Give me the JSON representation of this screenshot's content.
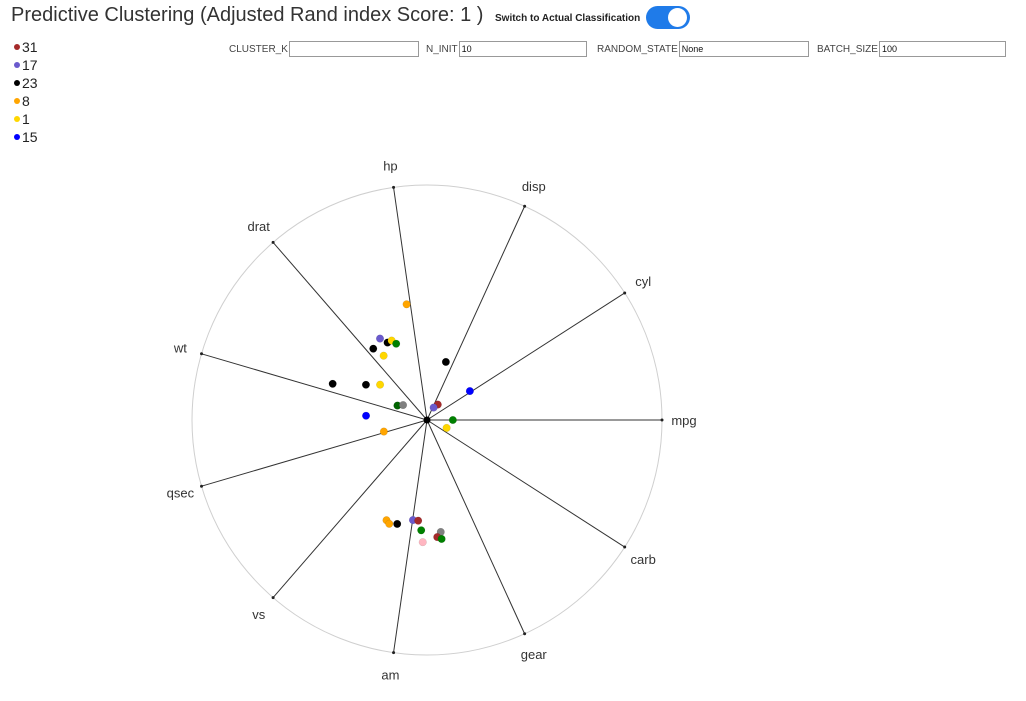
{
  "header": {
    "title": "Predictive Clustering (Adjusted Rand index Score: 1 )",
    "toggle_label": "Switch to Actual Classification",
    "toggle_on": true,
    "toggle_color": "#1f7be9"
  },
  "legend": {
    "items": [
      {
        "label": "31",
        "color": "#a52a2a"
      },
      {
        "label": "17",
        "color": "#6a5acd"
      },
      {
        "label": "23",
        "color": "#000000"
      },
      {
        "label": "8",
        "color": "#ffa500"
      },
      {
        "label": "1",
        "color": "#ffd700"
      },
      {
        "label": "15",
        "color": "#0000ff"
      }
    ]
  },
  "params": {
    "cluster_k": {
      "label": "CLUSTER_K",
      "value": ""
    },
    "n_init": {
      "label": "N_INIT",
      "value": "10"
    },
    "random_state": {
      "label": "RANDOM_STATE",
      "value": "None"
    },
    "batch_size": {
      "label": "BATCH_SIZE",
      "value": "100"
    }
  },
  "chart_data": {
    "type": "scatter",
    "layout": "radial",
    "axes": [
      "mpg",
      "cyl",
      "disp",
      "hp",
      "drat",
      "wt",
      "qsec",
      "vs",
      "am",
      "gear",
      "carb"
    ],
    "points": [
      {
        "color": "#ffa500",
        "r": 0.5,
        "angle_deg": 100
      },
      {
        "color": "#000000",
        "r": 0.26,
        "angle_deg": 72
      },
      {
        "color": "#0000ff",
        "r": 0.22,
        "angle_deg": 34
      },
      {
        "color": "#a52a2a",
        "r": 0.08,
        "angle_deg": 55
      },
      {
        "color": "#6a5acd",
        "r": 0.06,
        "angle_deg": 62
      },
      {
        "color": "#008000",
        "r": 0.11,
        "angle_deg": 0
      },
      {
        "color": "#ffd700",
        "r": 0.09,
        "angle_deg": -22
      },
      {
        "color": "#6a5acd",
        "r": 0.4,
        "angle_deg": 120
      },
      {
        "color": "#000000",
        "r": 0.38,
        "angle_deg": 127
      },
      {
        "color": "#000000",
        "r": 0.37,
        "angle_deg": 117
      },
      {
        "color": "#ffd700",
        "r": 0.37,
        "angle_deg": 114
      },
      {
        "color": "#008000",
        "r": 0.35,
        "angle_deg": 112
      },
      {
        "color": "#ffd700",
        "r": 0.33,
        "angle_deg": 124
      },
      {
        "color": "#ffd700",
        "r": 0.25,
        "angle_deg": 143
      },
      {
        "color": "#000000",
        "r": 0.3,
        "angle_deg": 150
      },
      {
        "color": "#000000",
        "r": 0.43,
        "angle_deg": 159
      },
      {
        "color": "#0000ff",
        "r": 0.26,
        "angle_deg": 176
      },
      {
        "color": "#006400",
        "r": 0.14,
        "angle_deg": 154
      },
      {
        "color": "#808080",
        "r": 0.12,
        "angle_deg": 148
      },
      {
        "color": "#ffa500",
        "r": 0.19,
        "angle_deg": 195
      },
      {
        "color": "#ffa500",
        "r": 0.46,
        "angle_deg": 248
      },
      {
        "color": "#ffa500",
        "r": 0.47,
        "angle_deg": 250
      },
      {
        "color": "#000000",
        "r": 0.46,
        "angle_deg": 254
      },
      {
        "color": "#6a5acd",
        "r": 0.43,
        "angle_deg": 262
      },
      {
        "color": "#a52a2a",
        "r": 0.43,
        "angle_deg": 265
      },
      {
        "color": "#008000",
        "r": 0.47,
        "angle_deg": 267
      },
      {
        "color": "#808080",
        "r": 0.48,
        "angle_deg": 277
      },
      {
        "color": "#a52a2a",
        "r": 0.5,
        "angle_deg": 275
      },
      {
        "color": "#008000",
        "r": 0.51,
        "angle_deg": 277
      },
      {
        "color": "#ffb6c1",
        "r": 0.52,
        "angle_deg": 268
      }
    ]
  }
}
